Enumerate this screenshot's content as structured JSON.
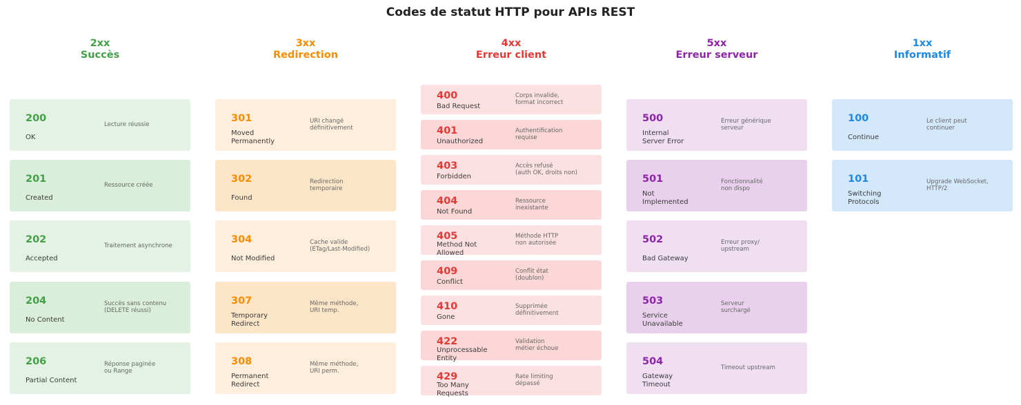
{
  "title": "Codes de statut HTTP pour APIs REST",
  "colors": {
    "green": "#43a047",
    "orange": "#fb8c00",
    "red": "#e53935",
    "purple": "#8e24aa",
    "blue": "#1e88e5",
    "green_bg_a": "#e4f2e5",
    "green_bg_b": "#d9eedb",
    "orange_bg_a": "#feeedb",
    "orange_bg_b": "#fde6c8",
    "red_bg_a": "#fde1e2",
    "red_bg_b": "#fbd7d8",
    "purple_bg_a": "#efdff1",
    "purple_bg_b": "#e9d1ed",
    "blue_bg_a": "#d4e8fb",
    "blue_bg_b": "#d4e8fb"
  },
  "columns": [
    {
      "key": "2xx",
      "range": "2xx",
      "label": "Succès",
      "items": [
        {
          "code": "200",
          "name": "OK",
          "desc": "Lecture réussie"
        },
        {
          "code": "201",
          "name": "Created",
          "desc": "Ressource créée"
        },
        {
          "code": "202",
          "name": "Accepted",
          "desc": "Traitement asynchrone"
        },
        {
          "code": "204",
          "name": "No Content",
          "desc": "Succès sans contenu\n(DELETE réussi)"
        },
        {
          "code": "206",
          "name": "Partial Content",
          "desc": "Réponse paginée\nou Range"
        }
      ]
    },
    {
      "key": "3xx",
      "range": "3xx",
      "label": "Redirection",
      "items": [
        {
          "code": "301",
          "name": "Moved\nPermanently",
          "desc": "URI changé\ndéfinitivement"
        },
        {
          "code": "302",
          "name": "Found",
          "desc": "Redirection\ntemporaire"
        },
        {
          "code": "304",
          "name": "Not Modified",
          "desc": "Cache valide\n(ETag/Last-Modified)"
        },
        {
          "code": "307",
          "name": "Temporary\nRedirect",
          "desc": "Même méthode,\nURI temp."
        },
        {
          "code": "308",
          "name": "Permanent\nRedirect",
          "desc": "Même méthode,\nURI perm."
        }
      ]
    },
    {
      "key": "4xx",
      "range": "4xx",
      "label": "Erreur client",
      "items": [
        {
          "code": "400",
          "name": "Bad Request",
          "desc": "Corps invalide,\nformat incorrect"
        },
        {
          "code": "401",
          "name": "Unauthorized",
          "desc": "Authentification\nrequise"
        },
        {
          "code": "403",
          "name": "Forbidden",
          "desc": "Accès refusé\n(auth OK, droits non)"
        },
        {
          "code": "404",
          "name": "Not Found",
          "desc": "Ressource\ninexistante"
        },
        {
          "code": "405",
          "name": "Method Not\nAllowed",
          "desc": "Méthode HTTP\nnon autorisée"
        },
        {
          "code": "409",
          "name": "Conflict",
          "desc": "Conflit état\n(doublon)"
        },
        {
          "code": "410",
          "name": "Gone",
          "desc": "Supprimée\ndéfinitivement"
        },
        {
          "code": "422",
          "name": "Unprocessable\nEntity",
          "desc": "Validation\nmétier échoue"
        },
        {
          "code": "429",
          "name": "Too Many\nRequests",
          "desc": "Rate limiting\ndépassé"
        }
      ]
    },
    {
      "key": "5xx",
      "range": "5xx",
      "label": "Erreur serveur",
      "items": [
        {
          "code": "500",
          "name": "Internal\nServer Error",
          "desc": "Erreur générique\nserveur"
        },
        {
          "code": "501",
          "name": "Not\nImplemented",
          "desc": "Fonctionnalité\nnon dispo"
        },
        {
          "code": "502",
          "name": "Bad Gateway",
          "desc": "Erreur proxy/\nupstream"
        },
        {
          "code": "503",
          "name": "Service\nUnavailable",
          "desc": "Serveur\nsurchargé"
        },
        {
          "code": "504",
          "name": "Gateway\nTimeout",
          "desc": "Timeout upstream"
        }
      ]
    },
    {
      "key": "1xx",
      "range": "1xx",
      "label": "Informatif",
      "items": [
        {
          "code": "100",
          "name": "Continue",
          "desc": "Le client peut\ncontinuer"
        },
        {
          "code": "101",
          "name": "Switching\nProtocols",
          "desc": "Upgrade WebSocket,\nHTTP/2"
        }
      ]
    }
  ]
}
